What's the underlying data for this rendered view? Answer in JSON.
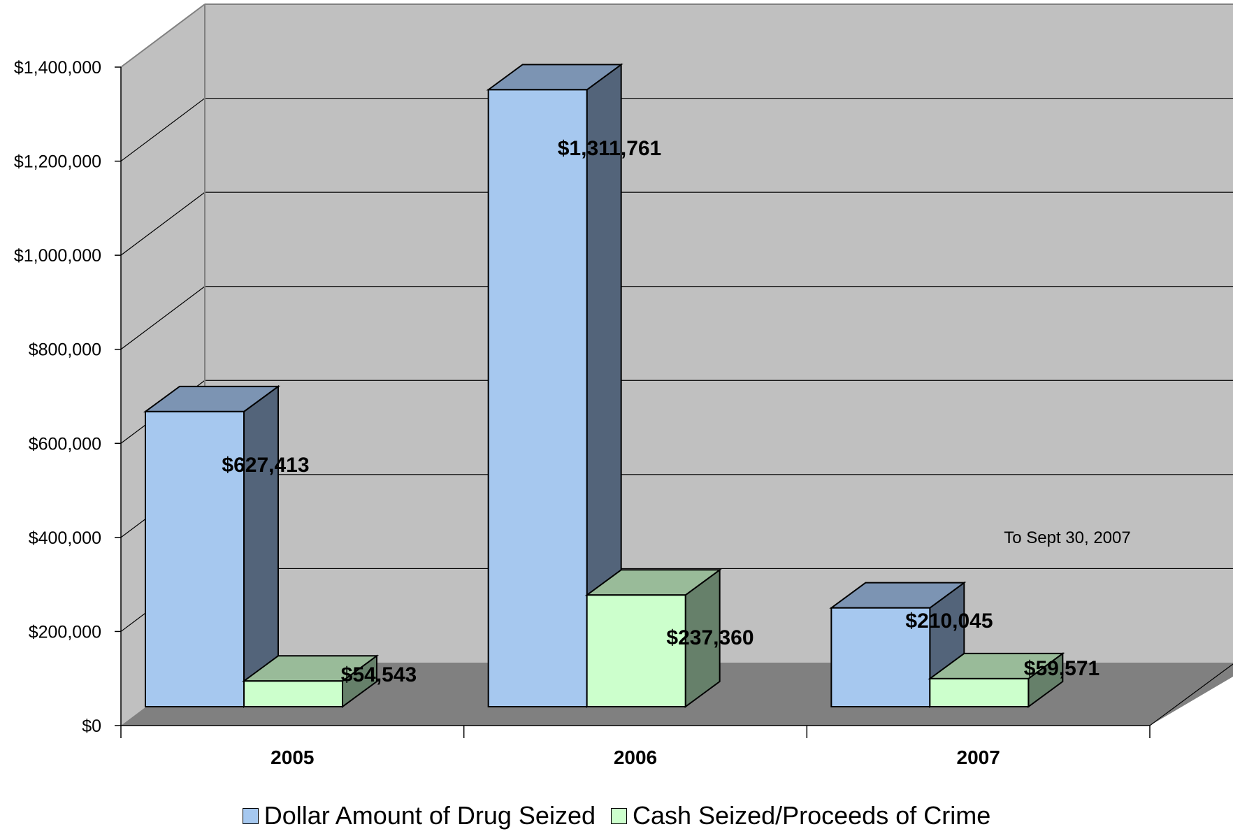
{
  "chart_data": {
    "type": "bar",
    "categories": [
      "2005",
      "2006",
      "2007"
    ],
    "series": [
      {
        "name": "Dollar Amount of Drug Seized",
        "values": [
          627413,
          1311761,
          210045
        ],
        "color": "#a6c8ef"
      },
      {
        "name": "Cash Seized/Proceeds of Crime",
        "values": [
          54543,
          237360,
          59571
        ],
        "color": "#ccffcc"
      }
    ],
    "data_labels": [
      [
        "$627,413",
        "$1,311,761",
        "$210,045"
      ],
      [
        "$54,543",
        "$237,360",
        "$59,571"
      ]
    ],
    "y_ticks": [
      {
        "value": 0,
        "label": "$0"
      },
      {
        "value": 200000,
        "label": "$200,000"
      },
      {
        "value": 400000,
        "label": "$400,000"
      },
      {
        "value": 600000,
        "label": "$600,000"
      },
      {
        "value": 800000,
        "label": "$800,000"
      },
      {
        "value": 1000000,
        "label": "$1,000,000"
      },
      {
        "value": 1200000,
        "label": "$1,200,000"
      },
      {
        "value": 1400000,
        "label": "$1,400,000"
      }
    ],
    "ylim": [
      0,
      1400000
    ],
    "annotation": "To Sept 30, 2007",
    "grid": true,
    "style": "3d-clustered-column",
    "legend_position": "bottom",
    "colors": {
      "wall": "#c0c0c0",
      "floor": "#808080",
      "series1_side": "#53647a",
      "series1_top": "#7c94b3",
      "series2_side": "#66806a",
      "series2_top": "#99bb99"
    }
  }
}
